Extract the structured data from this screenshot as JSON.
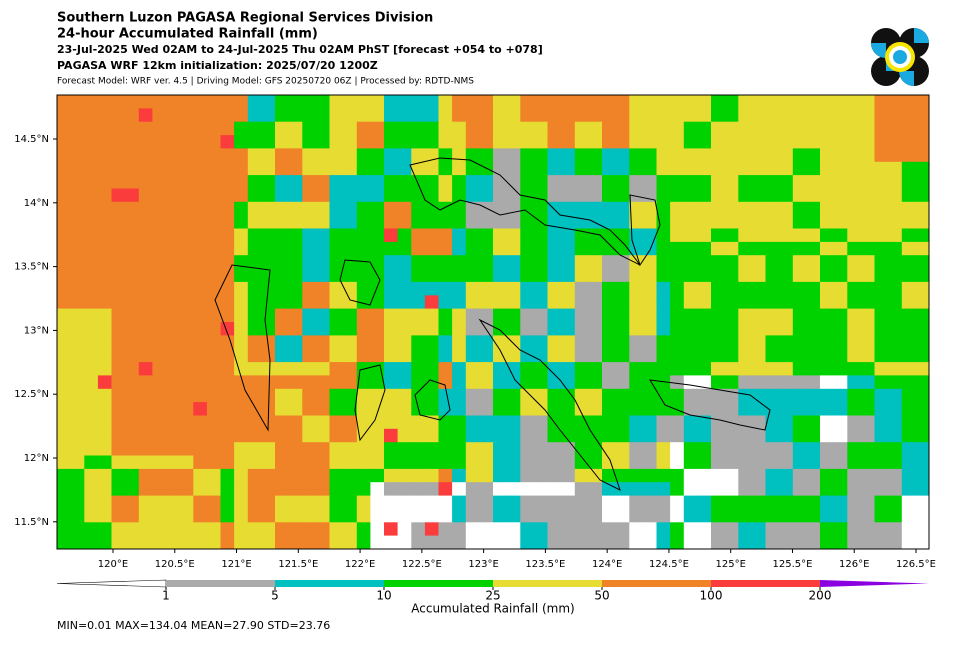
{
  "header": {
    "title": "Southern Luzon PAGASA Regional Services Division",
    "subtitle": "24-hour Accumulated Rainfall (mm)",
    "period": "23-Jul-2025 Wed 02AM to 24-Jul-2025 Thu 02AM PhST [forecast +054 to +078]",
    "init": "PAGASA WRF 12km initialization: 2025/07/20 1200Z",
    "model": "Forecast Model: WRF ver. 4.5 | Driving Model: GFS 20250720 06Z | Processed by: RDTD-NMS"
  },
  "map": {
    "lat_ticks": [
      "14.5°N",
      "14°N",
      "13.5°N",
      "13°N",
      "12.5°N",
      "12°N",
      "11.5°N"
    ],
    "lon_ticks": [
      "120°E",
      "120.5°E",
      "121°E",
      "121.5°E",
      "122°E",
      "122.5°E",
      "123°E",
      "123.5°E",
      "124°E",
      "124.5°E",
      "125°E",
      "125.5°E",
      "126°E",
      "126.5°E"
    ]
  },
  "colorbar": {
    "labels": [
      "1",
      "5",
      "10",
      "25",
      "50",
      "100",
      "200"
    ],
    "colors": [
      "#aaaaaa",
      "#00c0c0",
      "#00d200",
      "#e6dc32",
      "#f08228",
      "#fa3c3c",
      "#8a00e0"
    ],
    "title": "Accumulated Rainfall (mm)"
  },
  "stats": "MIN=0.01   MAX=134.04   MEAN=27.90   STD=23.76"
}
